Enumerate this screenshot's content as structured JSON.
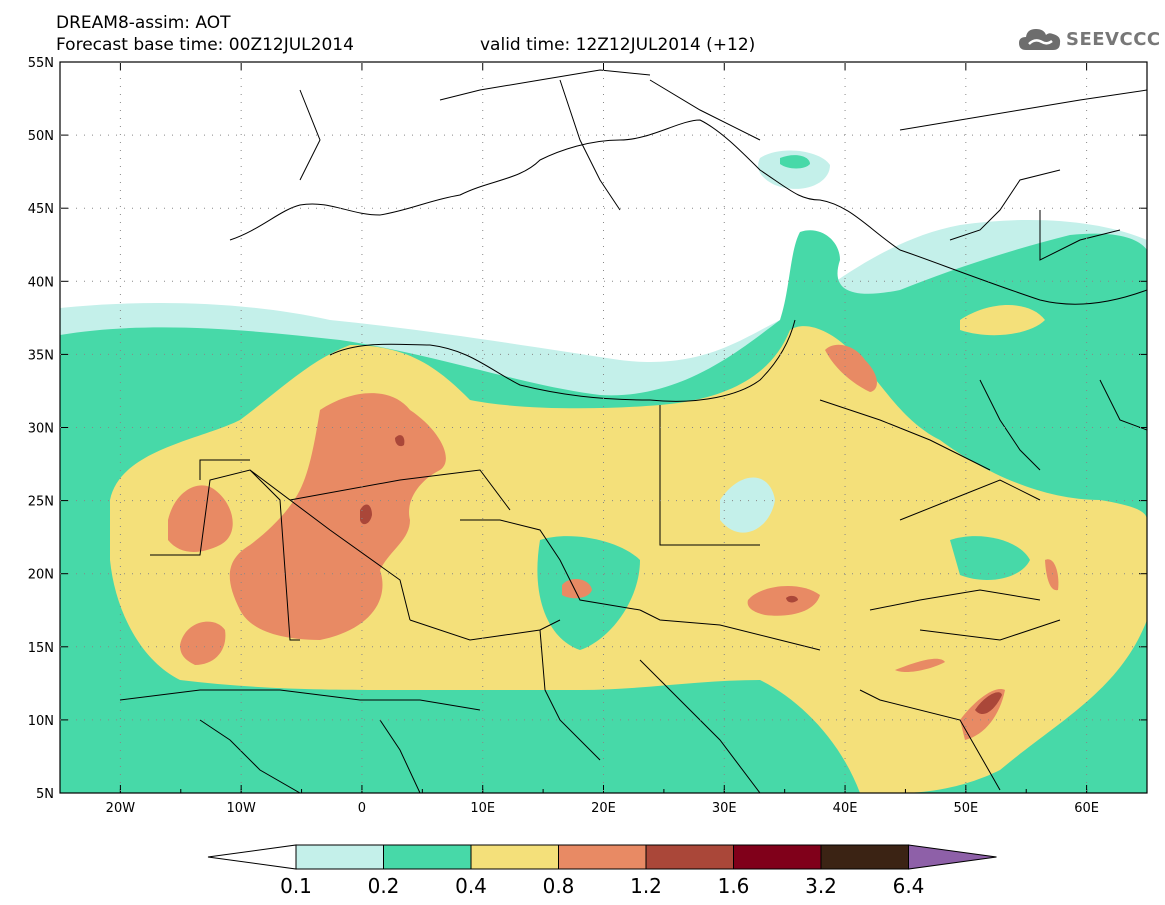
{
  "header": {
    "title_line1": "DREAM8-assim: AOT",
    "title_line2": "Forecast base time: 00Z12JUL2014",
    "valid_time": "valid time: 12Z12JUL2014 (+12)",
    "logo_text": "SEEVCCC"
  },
  "map": {
    "lon_range": [
      -25,
      65
    ],
    "lat_range": [
      5,
      55
    ],
    "lat_labels": [
      "55N",
      "50N",
      "45N",
      "40N",
      "35N",
      "30N",
      "25N",
      "20N",
      "15N",
      "10N",
      "5N"
    ],
    "lon_labels": [
      "20W",
      "10W",
      "0",
      "10E",
      "20E",
      "30E",
      "40E",
      "50E",
      "60E"
    ]
  },
  "colorbar": {
    "labels": [
      "0.1",
      "0.2",
      "0.4",
      "0.8",
      "1.2",
      "1.6",
      "3.2",
      "6.4"
    ],
    "colors": [
      "#c4f0ea",
      "#47d9a8",
      "#f4e07a",
      "#e88a64",
      "#aa4739",
      "#80001a",
      "#3b2314",
      "#8e60a8"
    ]
  }
}
